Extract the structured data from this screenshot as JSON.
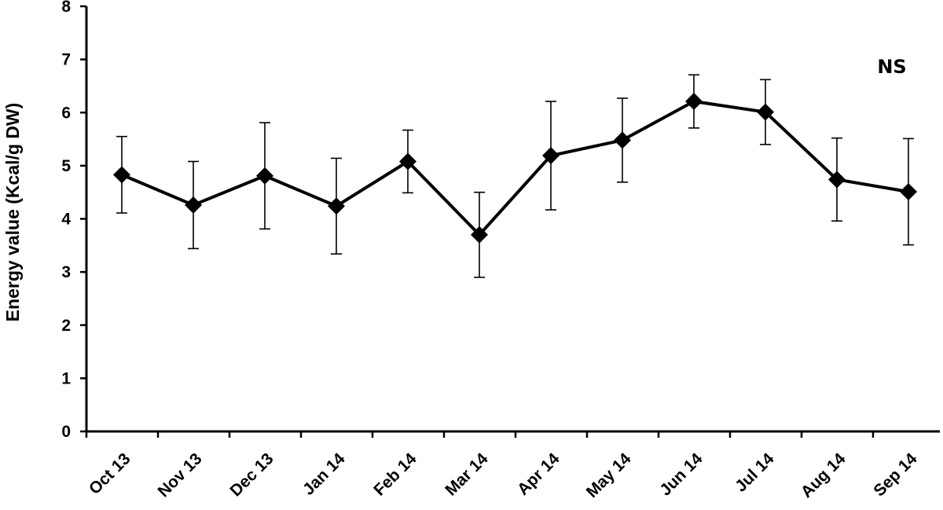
{
  "chart_data": {
    "type": "line",
    "title": "",
    "xlabel": "",
    "ylabel": "Energy value (Kcal/g DW)",
    "ylim": [
      0,
      8
    ],
    "yticks": [
      0,
      1,
      2,
      3,
      4,
      5,
      6,
      7,
      8
    ],
    "categories": [
      "Oct 13",
      "Nov 13",
      "Dec 13",
      "Jan 14",
      "Feb 14",
      "Mar 14",
      "Apr 14",
      "May 14",
      "Jun 14",
      "Jul 14",
      "Aug 14",
      "Sep 14"
    ],
    "series": [
      {
        "values": [
          4.83,
          4.26,
          4.81,
          4.24,
          5.08,
          3.7,
          5.19,
          5.48,
          6.21,
          6.01,
          4.74,
          4.51
        ],
        "error": [
          0.72,
          0.82,
          1.0,
          0.9,
          0.59,
          0.8,
          1.02,
          0.79,
          0.5,
          0.61,
          0.78,
          1.0
        ],
        "marker": "diamond",
        "color": "#000000"
      }
    ],
    "annotations": [
      {
        "text": "NS",
        "position": "top-right"
      }
    ],
    "grid": false,
    "legend": "none"
  }
}
